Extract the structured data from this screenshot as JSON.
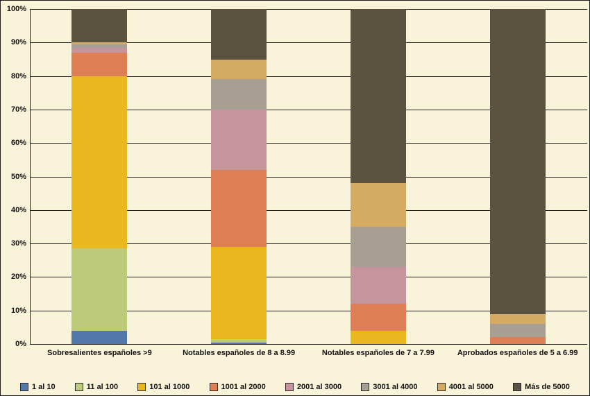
{
  "chart_data": {
    "type": "bar",
    "subtype": "stacked-100-percent",
    "background": "#F8F3D9",
    "grid": true,
    "grid_color": "#1c1c1c",
    "legend_position": "bottom",
    "ylim": [
      0,
      100
    ],
    "y_ticks": [
      "100%",
      "90%",
      "80%",
      "70%",
      "60%",
      "50%",
      "40%",
      "30%",
      "20%",
      "10%",
      "0%"
    ],
    "categories": [
      "Sobresalientes españoles >9",
      "Notables españoles de 8 a 8.99",
      "Notables españoles de 7 a 7.99",
      "Aprobados españoles de 5 a 6.99"
    ],
    "series": [
      {
        "name": "1 al 10",
        "color": "#5377A9",
        "values": [
          4,
          0.5,
          0,
          0
        ]
      },
      {
        "name": "11 al 100",
        "color": "#BECB7D",
        "values": [
          24.5,
          1,
          0,
          0
        ]
      },
      {
        "name": "101 al 1000",
        "color": "#EAB71E",
        "values": [
          51.5,
          27.5,
          4,
          0
        ]
      },
      {
        "name": "1001 al 2000",
        "color": "#DE7E54",
        "values": [
          7,
          23,
          8,
          2
        ]
      },
      {
        "name": "2001 al 3000",
        "color": "#C6949C",
        "values": [
          1.5,
          18,
          11,
          0
        ]
      },
      {
        "name": "3001 al 4000",
        "color": "#A79F92",
        "values": [
          1,
          9,
          12,
          4
        ]
      },
      {
        "name": "4001 al 5000",
        "color": "#D5AA61",
        "values": [
          0.5,
          6,
          13,
          3
        ]
      },
      {
        "name": "Más de 5000",
        "color": "#5B5340",
        "values": [
          10,
          15,
          52,
          91
        ]
      }
    ]
  }
}
